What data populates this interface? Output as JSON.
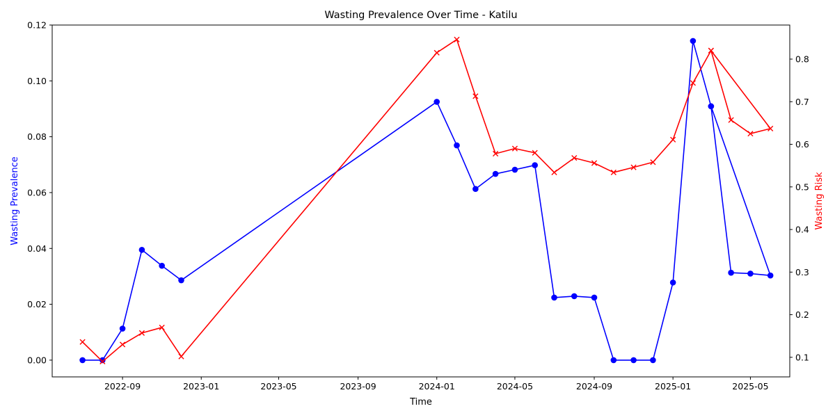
{
  "chart_data": {
    "type": "line",
    "title": "Wasting Prevalence Over Time - Katilu",
    "xlabel": "Time",
    "ylabel_left": "Wasting Prevalence",
    "ylabel_right": "Wasting Risk",
    "x_ticks": [
      "2022-09",
      "2023-01",
      "2023-05",
      "2023-09",
      "2024-01",
      "2024-05",
      "2024-09",
      "2025-01",
      "2025-05"
    ],
    "y_left_ticks": [
      "0.00",
      "0.02",
      "0.04",
      "0.06",
      "0.08",
      "0.10",
      "0.12"
    ],
    "y_right_ticks": [
      "0.1",
      "0.2",
      "0.3",
      "0.4",
      "0.5",
      "0.6",
      "0.7",
      "0.8"
    ],
    "xlim": [
      "2022-05-15",
      "2025-07-01"
    ],
    "ylim_left": [
      -0.006,
      0.12
    ],
    "ylim_right": [
      0.054,
      0.88
    ],
    "grid": false,
    "colors": {
      "prevalence": "#0000ff",
      "risk": "#ff0000"
    },
    "series": [
      {
        "axis": "left",
        "marker": "circle",
        "dates": [
          "2022-07-01",
          "2022-08-01",
          "2022-09-01",
          "2022-10-01",
          "2022-11-01",
          "2022-12-01",
          "2024-01-01",
          "2024-02-01",
          "2024-03-01",
          "2024-04-01",
          "2024-05-01",
          "2024-06-01",
          "2024-07-01",
          "2024-08-01",
          "2024-09-01",
          "2024-10-01",
          "2024-11-01",
          "2024-12-01",
          "2025-01-01",
          "2025-02-01",
          "2025-03-01",
          "2025-04-01",
          "2025-05-01",
          "2025-06-01",
          "2025-03-01"
        ],
        "values": [
          0.0,
          0.0,
          0.0113,
          0.0395,
          0.0338,
          0.0286,
          0.0925,
          0.0769,
          0.0613,
          0.0667,
          0.0682,
          0.0698,
          0.0224,
          0.0229,
          0.0224,
          0.0,
          0.0,
          0.0,
          0.0278,
          0.1143,
          0.0909,
          0.0313,
          0.031,
          0.0303,
          0.0909
        ]
      },
      {
        "axis": "right",
        "marker": "x",
        "dates": [
          "2022-07-01",
          "2022-08-01",
          "2022-09-01",
          "2022-10-01",
          "2022-11-01",
          "2022-12-01",
          "2024-01-01",
          "2024-02-01",
          "2024-03-01",
          "2024-04-01",
          "2024-05-01",
          "2024-06-01",
          "2024-07-01",
          "2024-08-01",
          "2024-09-01",
          "2024-10-01",
          "2024-11-01",
          "2024-12-01",
          "2025-01-01",
          "2025-02-01",
          "2025-03-01",
          "2025-04-01",
          "2025-05-01",
          "2025-06-01",
          "2025-03-01"
        ],
        "values": [
          0.136,
          0.09,
          0.13,
          0.157,
          0.17,
          0.102,
          0.815,
          0.846,
          0.713,
          0.578,
          0.59,
          0.58,
          0.534,
          0.568,
          0.556,
          0.534,
          0.546,
          0.558,
          0.611,
          0.744,
          0.82,
          0.657,
          0.625,
          0.637,
          0.82
        ]
      }
    ]
  }
}
